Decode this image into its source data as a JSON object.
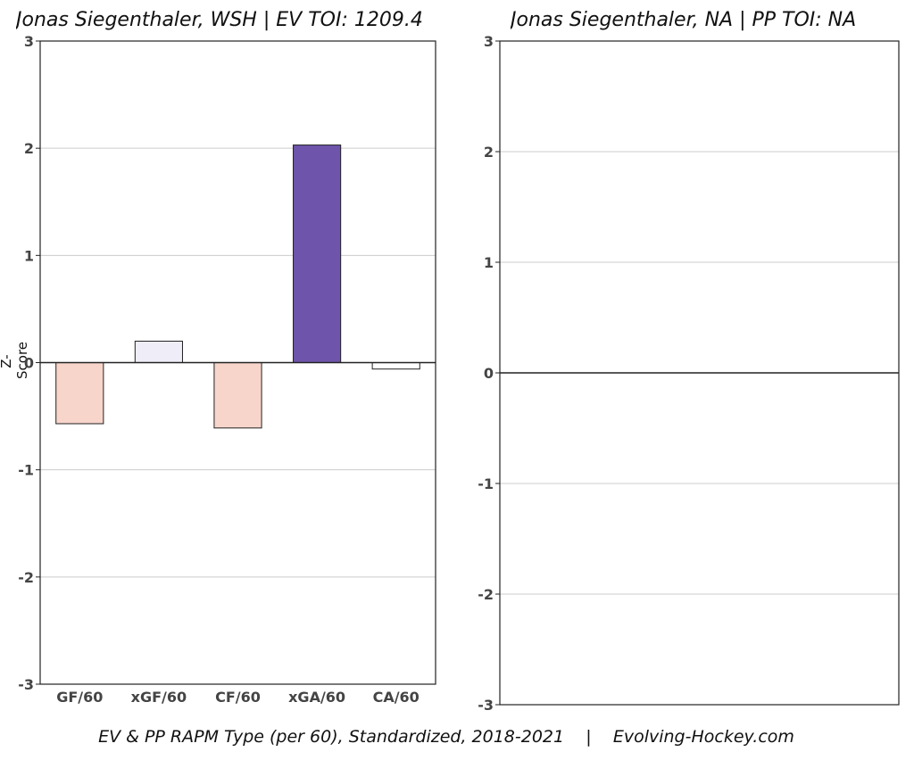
{
  "chart_data": [
    {
      "type": "bar",
      "title": "Jonas Siegenthaler, WSH  |  EV TOI: 1209.4",
      "ylabel": "Z-Score",
      "xlabel": "",
      "categories": [
        "GF/60",
        "xGF/60",
        "CF/60",
        "xGA/60",
        "CA/60"
      ],
      "values": [
        -0.57,
        0.2,
        -0.61,
        2.03,
        -0.06
      ],
      "colors": [
        "#f8d5cb",
        "#efedf7",
        "#f8d5cb",
        "#6e54aa",
        "#ffffff"
      ],
      "ylim": [
        -3,
        3
      ],
      "yticks": [
        "3",
        "2",
        "1",
        "0",
        "-1",
        "-2",
        "-3"
      ],
      "grid": true
    },
    {
      "type": "bar",
      "title": "Jonas Siegenthaler, NA  |  PP TOI: NA",
      "ylabel": "",
      "xlabel": "",
      "categories": [],
      "values": [],
      "ylim": [
        -3,
        3
      ],
      "yticks": [
        "3",
        "2",
        "1",
        "0",
        "-1",
        "-2",
        "-3"
      ],
      "grid": true
    }
  ],
  "caption": "EV & PP RAPM Type (per 60), Standardized, 2018-2021    |    Evolving-Hockey.com",
  "colors": {
    "bar_edge": "#222222",
    "gridline": "#cccccc",
    "tick_text": "#444444"
  }
}
